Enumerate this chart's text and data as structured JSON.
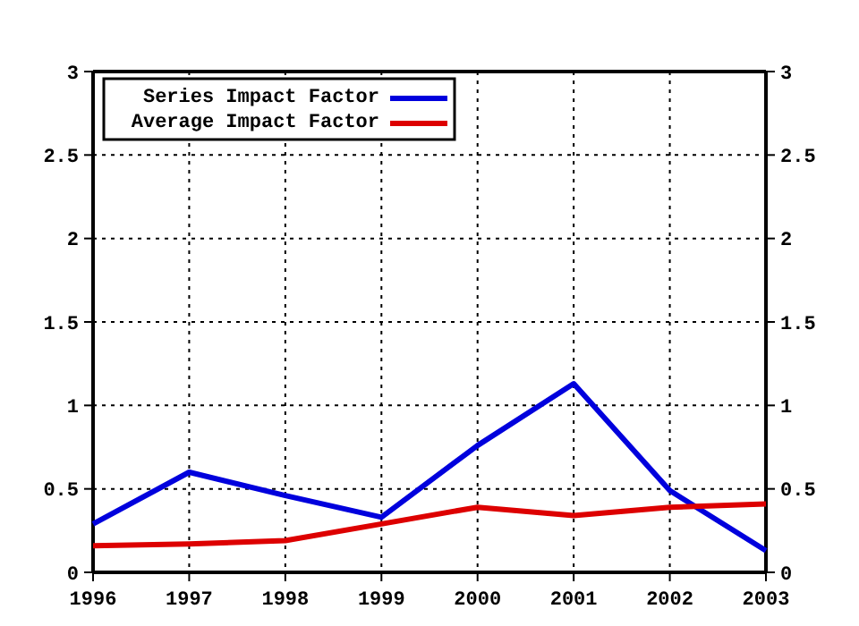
{
  "chart_data": {
    "type": "line",
    "categories": [
      "1996",
      "1997",
      "1998",
      "1999",
      "2000",
      "2001",
      "2002",
      "2003"
    ],
    "series": [
      {
        "name": "Series Impact Factor",
        "color": "#0000dd",
        "values": [
          0.29,
          0.6,
          0.46,
          0.33,
          0.76,
          1.13,
          0.49,
          0.13
        ]
      },
      {
        "name": "Average Impact Factor",
        "color": "#dd0000",
        "values": [
          0.16,
          0.17,
          0.19,
          0.29,
          0.39,
          0.34,
          0.39,
          0.41
        ]
      }
    ],
    "ylim": [
      0,
      3
    ],
    "yticks": [
      0,
      0.5,
      1,
      1.5,
      2,
      2.5,
      3
    ],
    "y2lim": [
      0,
      3
    ],
    "y2ticks": [
      0,
      0.5,
      1,
      1.5,
      2,
      2.5,
      3
    ],
    "grid": true,
    "legend": "top left",
    "marker": "none",
    "line_style": "solid"
  }
}
